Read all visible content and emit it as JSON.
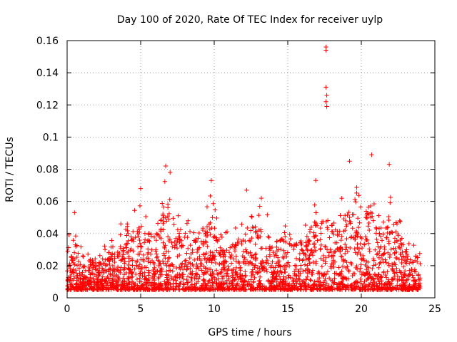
{
  "chart_data": {
    "type": "scatter",
    "title": "Day 100 of 2020, Rate Of TEC Index for receiver uylp",
    "xlabel": "GPS time / hours",
    "ylabel": "ROTI / TECUs",
    "xlim": [
      0,
      25
    ],
    "ylim": [
      0,
      0.16
    ],
    "xticks": [
      "0",
      "5",
      "10",
      "15",
      "20",
      "25"
    ],
    "xtick_values": [
      0,
      5,
      10,
      15,
      20,
      25
    ],
    "yticks": [
      "0",
      "0.02",
      "0.04",
      "0.06",
      "0.08",
      "0.1",
      "0.12",
      "0.14",
      "0.16"
    ],
    "ytick_values": [
      0,
      0.02,
      0.04,
      0.06,
      0.08,
      0.1,
      0.12,
      0.14,
      0.16
    ],
    "grid": true,
    "marker": "+",
    "series": [
      {
        "name": "ROTI",
        "color": "#ff0000",
        "x_range": [
          0,
          24
        ],
        "typical_range": [
          0.005,
          0.035
        ],
        "notable_points": [
          {
            "x": 0.5,
            "y": 0.053
          },
          {
            "x": 5.0,
            "y": 0.068
          },
          {
            "x": 6.7,
            "y": 0.082
          },
          {
            "x": 7.0,
            "y": 0.078
          },
          {
            "x": 9.8,
            "y": 0.073
          },
          {
            "x": 12.2,
            "y": 0.067
          },
          {
            "x": 13.2,
            "y": 0.062
          },
          {
            "x": 16.9,
            "y": 0.073
          },
          {
            "x": 17.6,
            "y": 0.156
          },
          {
            "x": 17.6,
            "y": 0.154
          },
          {
            "x": 17.6,
            "y": 0.131
          },
          {
            "x": 17.65,
            "y": 0.126
          },
          {
            "x": 17.6,
            "y": 0.122
          },
          {
            "x": 17.65,
            "y": 0.119
          },
          {
            "x": 19.2,
            "y": 0.085
          },
          {
            "x": 20.7,
            "y": 0.089
          },
          {
            "x": 21.9,
            "y": 0.083
          },
          {
            "x": 23.7,
            "y": 0.026
          }
        ]
      }
    ]
  }
}
